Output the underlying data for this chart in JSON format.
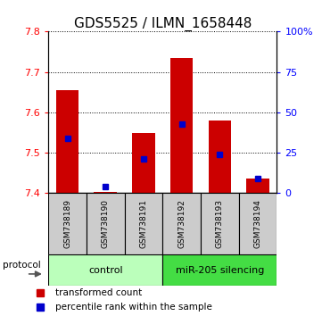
{
  "title": "GDS5525 / ILMN_1658448",
  "samples": [
    "GSM738189",
    "GSM738190",
    "GSM738191",
    "GSM738192",
    "GSM738193",
    "GSM738194"
  ],
  "bar_tops": [
    7.655,
    7.402,
    7.548,
    7.735,
    7.58,
    7.435
  ],
  "bar_base": 7.4,
  "blue_y": [
    7.535,
    7.415,
    7.484,
    7.57,
    7.495,
    7.435
  ],
  "ylim": [
    7.4,
    7.8
  ],
  "y_ticks_left": [
    7.4,
    7.5,
    7.6,
    7.7,
    7.8
  ],
  "y_ticks_right": [
    0,
    25,
    50,
    75,
    100
  ],
  "bar_color": "#cc0000",
  "blue_color": "#0000cc",
  "control_color": "#bbffbb",
  "treatment_color": "#44dd44",
  "label_area_color": "#cccccc",
  "groups": [
    {
      "label": "control",
      "color": "#bbffbb",
      "n": 3
    },
    {
      "label": "miR-205 silencing",
      "color": "#44dd44",
      "n": 3
    }
  ],
  "protocol_text": "protocol",
  "legend_red": "transformed count",
  "legend_blue": "percentile rank within the sample",
  "title_fontsize": 11,
  "tick_fontsize": 8,
  "sample_fontsize": 6.5,
  "group_fontsize": 8,
  "legend_fontsize": 7.5
}
